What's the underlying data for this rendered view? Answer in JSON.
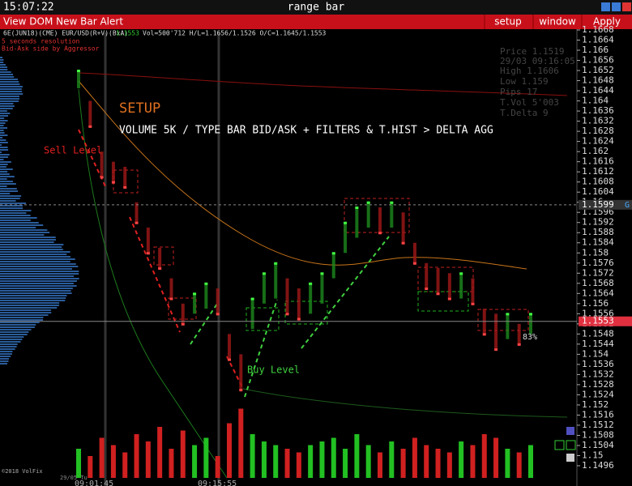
{
  "window": {
    "clock": "15:07:22",
    "title": "range bar"
  },
  "menu": {
    "left": "View DOM New Bar Alert",
    "items": [
      "setup",
      "window",
      "Apply"
    ]
  },
  "instrument": {
    "symbol": "6E(JUN18)(CME) EUR/USD(R+V)(BxA)",
    "last": "1.1553",
    "stats": "Vol=500'712 H/L=1.1656/1.1526 O/C=1.1645/1.1553",
    "notes": [
      "5 seconds resolution",
      "Bid-Ask side by Aggressor"
    ]
  },
  "info_panel": [
    "Price 1.1519",
    "29/03 09:16:05",
    "High 1.1606",
    "Low 1.159",
    "Pips 17",
    "T.Vol 5'003",
    "T.Delta 9"
  ],
  "annotations": {
    "setup": "SETUP",
    "description": "VOLUME 5K / TYPE BAR BID/ASK + FILTERS & T.HIST > DELTA AGG",
    "sell": "Sell Level",
    "buy": "Buy Level",
    "percent": "83%"
  },
  "footer": {
    "copyright": "©2018 VolFix",
    "date": "29/05 Tu",
    "times": [
      "09:01:45",
      "09:15:55"
    ]
  },
  "chart_data": {
    "type": "range-bar",
    "ylim": [
      1.1496,
      1.1668
    ],
    "yticks": [
      1.1668,
      1.1664,
      1.166,
      1.1656,
      1.1652,
      1.1648,
      1.1644,
      1.164,
      1.1636,
      1.1632,
      1.1628,
      1.1624,
      1.162,
      1.1616,
      1.1612,
      1.1608,
      1.1604,
      1.16,
      1.1596,
      1.1592,
      1.1588,
      1.1584,
      1.158,
      1.1576,
      1.1572,
      1.1568,
      1.1564,
      1.156,
      1.1556,
      1.1552,
      1.1548,
      1.1544,
      1.154,
      1.1536,
      1.1532,
      1.1528,
      1.1524,
      1.152,
      1.1516,
      1.1512,
      1.1508,
      1.1504,
      1.15,
      1.1496
    ],
    "markers": [
      1.1599,
      1.1553
    ],
    "marker_tag": "G",
    "highs": [
      1.1652,
      1.164,
      1.162,
      1.1616,
      1.1614,
      1.16,
      1.159,
      1.1582,
      1.157,
      1.156,
      1.1564,
      1.1568,
      1.1566,
      1.1548,
      1.154,
      1.1562,
      1.1572,
      1.1576,
      1.157,
      1.1566,
      1.1568,
      1.1572,
      1.158,
      1.1592,
      1.1598,
      1.16,
      1.1598,
      1.16,
      1.1596,
      1.1584,
      1.1576,
      1.1574,
      1.1572,
      1.1572,
      1.157,
      1.1558,
      1.1556,
      1.1556,
      1.1552,
      1.1556
    ],
    "lows": [
      1.1645,
      1.163,
      1.161,
      1.1608,
      1.1606,
      1.1592,
      1.158,
      1.1574,
      1.1562,
      1.1552,
      1.1556,
      1.1558,
      1.1556,
      1.1538,
      1.1526,
      1.155,
      1.156,
      1.1562,
      1.1556,
      1.1554,
      1.1556,
      1.156,
      1.157,
      1.158,
      1.1586,
      1.159,
      1.1588,
      1.159,
      1.1584,
      1.1576,
      1.1566,
      1.1564,
      1.1562,
      1.1562,
      1.156,
      1.1548,
      1.1542,
      1.1546,
      1.1544,
      1.1548
    ],
    "volume": [
      40,
      30,
      55,
      45,
      35,
      60,
      50,
      70,
      40,
      65,
      45,
      55,
      30,
      75,
      95,
      60,
      50,
      45,
      40,
      35,
      45,
      50,
      55,
      40,
      60,
      45,
      35,
      50,
      40,
      55,
      45,
      40,
      35,
      50,
      45,
      60,
      55,
      40,
      35,
      45
    ]
  }
}
